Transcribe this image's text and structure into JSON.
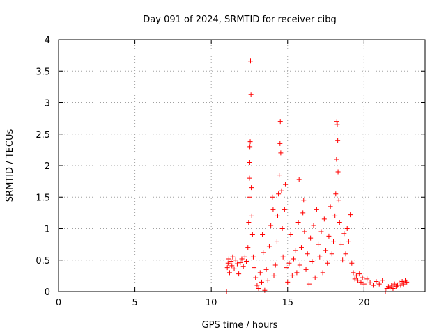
{
  "chart_data": {
    "type": "scatter",
    "title": "Day 091 of 2024, SRMTID for receiver cibg",
    "xlabel": "GPS time / hours",
    "ylabel": "SRMTID / TECUs",
    "xlim": [
      0,
      24
    ],
    "ylim": [
      0,
      4
    ],
    "xticks": [
      0,
      5,
      10,
      15,
      20
    ],
    "yticks": [
      0,
      0.5,
      1,
      1.5,
      2,
      2.5,
      3,
      3.5,
      4
    ],
    "xtick_labels": [
      "0",
      "5",
      "10",
      "15",
      "20"
    ],
    "ytick_labels": [
      "0",
      "0.5",
      "1",
      "1.5",
      "2",
      "2.5",
      "3",
      "3.5",
      "4"
    ],
    "grid": true,
    "legend": "none",
    "marker": "+",
    "color": "#ff0000",
    "series": [
      {
        "name": "SRMTID",
        "points": [
          [
            11.0,
            0.0
          ],
          [
            11.05,
            0.38
          ],
          [
            11.1,
            0.45
          ],
          [
            11.15,
            0.52
          ],
          [
            11.2,
            0.3
          ],
          [
            11.3,
            0.48
          ],
          [
            11.35,
            0.41
          ],
          [
            11.4,
            0.55
          ],
          [
            11.5,
            0.36
          ],
          [
            11.6,
            0.5
          ],
          [
            11.7,
            0.44
          ],
          [
            11.8,
            0.28
          ],
          [
            11.9,
            0.46
          ],
          [
            12.0,
            0.52
          ],
          [
            12.1,
            0.4
          ],
          [
            12.2,
            0.55
          ],
          [
            12.3,
            0.48
          ],
          [
            12.4,
            0.7
          ],
          [
            12.45,
            1.1
          ],
          [
            12.48,
            1.5
          ],
          [
            12.5,
            1.8
          ],
          [
            12.52,
            2.05
          ],
          [
            12.53,
            2.3
          ],
          [
            12.55,
            2.38
          ],
          [
            12.57,
            3.66
          ],
          [
            12.6,
            3.13
          ],
          [
            12.62,
            1.65
          ],
          [
            12.65,
            1.2
          ],
          [
            12.7,
            0.9
          ],
          [
            12.75,
            0.55
          ],
          [
            12.8,
            0.38
          ],
          [
            12.9,
            0.22
          ],
          [
            13.0,
            0.1
          ],
          [
            13.1,
            0.05
          ],
          [
            13.2,
            0.3
          ],
          [
            13.3,
            0.15
          ],
          [
            13.35,
            0.9
          ],
          [
            13.4,
            0.62
          ],
          [
            13.5,
            0.02
          ],
          [
            13.6,
            0.35
          ],
          [
            13.7,
            0.18
          ],
          [
            13.8,
            0.72
          ],
          [
            13.9,
            1.05
          ],
          [
            14.0,
            1.5
          ],
          [
            14.05,
            1.3
          ],
          [
            14.1,
            0.25
          ],
          [
            14.2,
            0.42
          ],
          [
            14.3,
            0.8
          ],
          [
            14.35,
            1.2
          ],
          [
            14.4,
            1.55
          ],
          [
            14.45,
            1.85
          ],
          [
            14.5,
            2.35
          ],
          [
            14.52,
            2.7
          ],
          [
            14.55,
            2.2
          ],
          [
            14.6,
            1.6
          ],
          [
            14.65,
            1.0
          ],
          [
            14.7,
            0.55
          ],
          [
            14.8,
            1.3
          ],
          [
            14.85,
            1.7
          ],
          [
            14.9,
            0.38
          ],
          [
            15.0,
            0.15
          ],
          [
            15.1,
            0.45
          ],
          [
            15.2,
            0.9
          ],
          [
            15.3,
            0.25
          ],
          [
            15.4,
            0.52
          ],
          [
            15.5,
            0.65
          ],
          [
            15.6,
            0.3
          ],
          [
            15.7,
            1.1
          ],
          [
            15.75,
            1.78
          ],
          [
            15.8,
            0.42
          ],
          [
            15.9,
            0.7
          ],
          [
            16.0,
            1.25
          ],
          [
            16.05,
            1.45
          ],
          [
            16.1,
            0.95
          ],
          [
            16.2,
            0.35
          ],
          [
            16.3,
            0.6
          ],
          [
            16.4,
            0.12
          ],
          [
            16.5,
            0.85
          ],
          [
            16.6,
            0.48
          ],
          [
            16.7,
            1.05
          ],
          [
            16.8,
            0.22
          ],
          [
            16.9,
            1.3
          ],
          [
            17.0,
            0.75
          ],
          [
            17.1,
            0.55
          ],
          [
            17.2,
            0.95
          ],
          [
            17.3,
            0.3
          ],
          [
            17.4,
            1.15
          ],
          [
            17.5,
            0.65
          ],
          [
            17.6,
            0.45
          ],
          [
            17.7,
            0.88
          ],
          [
            17.8,
            1.35
          ],
          [
            17.9,
            0.6
          ],
          [
            18.0,
            0.8
          ],
          [
            18.1,
            1.2
          ],
          [
            18.15,
            1.55
          ],
          [
            18.2,
            2.1
          ],
          [
            18.22,
            2.7
          ],
          [
            18.25,
            2.65
          ],
          [
            18.28,
            2.4
          ],
          [
            18.3,
            1.9
          ],
          [
            18.35,
            1.45
          ],
          [
            18.4,
            1.1
          ],
          [
            18.5,
            0.75
          ],
          [
            18.6,
            0.5
          ],
          [
            18.7,
            0.92
          ],
          [
            18.8,
            0.6
          ],
          [
            18.9,
            1.0
          ],
          [
            19.0,
            0.8
          ],
          [
            19.1,
            1.22
          ],
          [
            19.2,
            0.45
          ],
          [
            19.3,
            0.3
          ],
          [
            19.4,
            0.2
          ],
          [
            19.5,
            0.25
          ],
          [
            19.6,
            0.18
          ],
          [
            19.7,
            0.28
          ],
          [
            19.8,
            0.15
          ],
          [
            19.9,
            0.22
          ],
          [
            20.0,
            0.12
          ],
          [
            20.2,
            0.2
          ],
          [
            20.4,
            0.14
          ],
          [
            20.6,
            0.1
          ],
          [
            20.8,
            0.16
          ],
          [
            21.0,
            0.12
          ],
          [
            21.2,
            0.18
          ],
          [
            21.4,
            0.0
          ],
          [
            21.5,
            0.05
          ],
          [
            21.6,
            0.08
          ],
          [
            21.7,
            0.06
          ],
          [
            21.8,
            0.1
          ],
          [
            21.9,
            0.05
          ],
          [
            22.0,
            0.12
          ],
          [
            22.1,
            0.08
          ],
          [
            22.2,
            0.1
          ],
          [
            22.3,
            0.14
          ],
          [
            22.4,
            0.1
          ],
          [
            22.5,
            0.16
          ],
          [
            22.6,
            0.12
          ],
          [
            22.7,
            0.18
          ],
          [
            22.8,
            0.15
          ]
        ]
      }
    ]
  }
}
